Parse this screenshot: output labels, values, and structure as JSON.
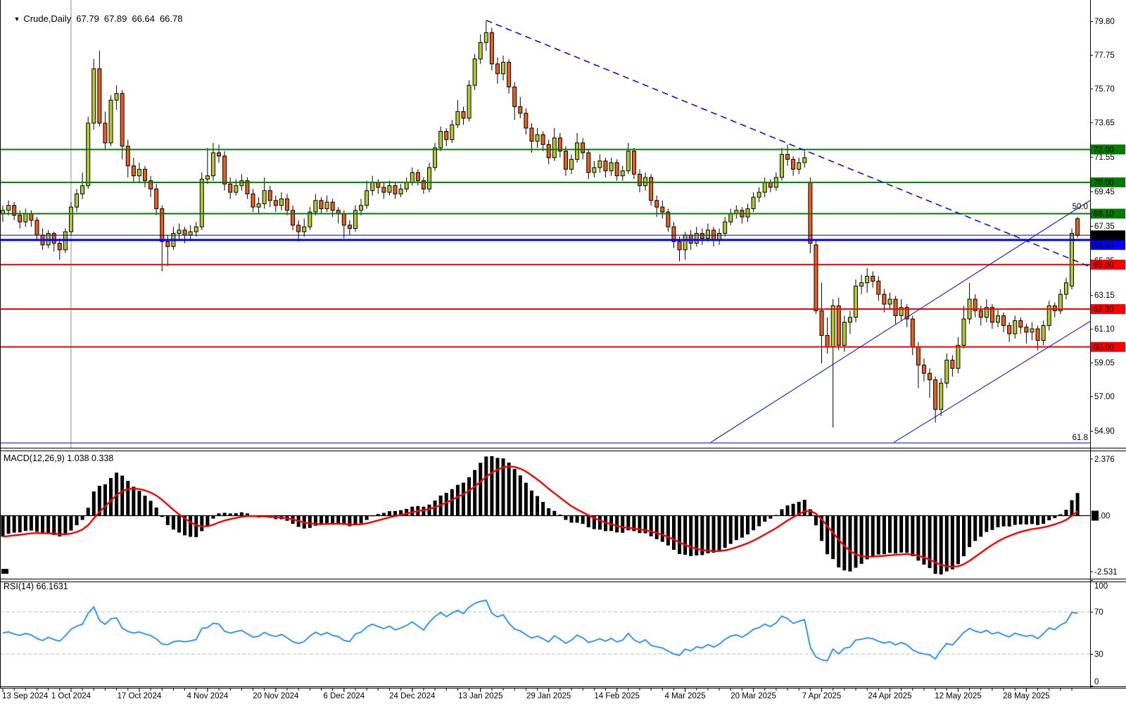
{
  "title_bar": {
    "dropdown_icon": "▼",
    "symbol_period": "Crude,Daily",
    "open": "67.79",
    "high": "67.89",
    "low": "66.64",
    "close": "66.78"
  },
  "chart_data": {
    "type": "candlestick",
    "symbol": "Crude",
    "timeframe": "Daily",
    "grid": "off",
    "ylim": [
      53.9,
      81.1
    ],
    "price_ticks": [
      79.8,
      77.75,
      75.7,
      73.65,
      71.55,
      69.45,
      67.35,
      65.25,
      63.15,
      61.1,
      59.05,
      57.0,
      54.9
    ],
    "x_labels": [
      "13 Sep 2024",
      "1 Oct 2024",
      "17 Oct 2024",
      "4 Nov 2024",
      "20 Nov 2024",
      "6 Dec 2024",
      "24 Dec 2024",
      "13 Jan 2025",
      "29 Jan 2025",
      "14 Feb 2025",
      "4 Mar 2025",
      "20 Mar 2025",
      "7 Apr 2025",
      "24 Apr 2025",
      "12 May 2025",
      "28 May 2025"
    ],
    "candles_per_label": 12,
    "current_price": {
      "value": 66.78,
      "axis_label": "66.78"
    },
    "horizontal_lines": [
      {
        "price": 72.0,
        "color": "#007D00",
        "width": 2,
        "axis_label": "72.00"
      },
      {
        "price": 70.0,
        "color": "#007D00",
        "width": 2,
        "axis_label": "70.00"
      },
      {
        "price": 68.1,
        "color": "#007D00",
        "width": 2,
        "axis_label": "68.10"
      },
      {
        "price": 66.79,
        "color": "#000080",
        "width": 1,
        "axis_label": null
      },
      {
        "price": 66.5,
        "color": "#0000FF",
        "width": 3,
        "axis_label": "66.50",
        "label_shift": 7
      },
      {
        "price": 65.0,
        "color": "#FF0000",
        "width": 2,
        "axis_label": "65.00"
      },
      {
        "price": 62.3,
        "color": "#FF0000",
        "width": 2,
        "axis_label": "62.30"
      },
      {
        "price": 60.0,
        "color": "#FF0000",
        "width": 2,
        "axis_label": "60.00"
      },
      {
        "price": 54.17,
        "color": "#0000C0",
        "width": 1,
        "axis_label": null
      }
    ],
    "trendlines": [
      {
        "from": {
          "bar": 85,
          "price": 79.85
        },
        "to": {
          "bar": 191,
          "price": 64.9
        },
        "style": "dashed",
        "color": "#0000E6",
        "width": 1.5
      },
      {
        "from": {
          "bar": 124.5,
          "price": 54.2
        },
        "to": {
          "bar": 191.2,
          "price": 68.9
        },
        "style": "solid",
        "color": "#0000CC",
        "width": 1
      },
      {
        "from": {
          "bar": 156.7,
          "price": 54.2
        },
        "to": {
          "bar": 191.2,
          "price": 61.55
        },
        "style": "solid",
        "color": "#0000CC",
        "width": 1
      }
    ],
    "fib_labels": [
      {
        "text": "50.0",
        "price": 68.55
      },
      {
        "text": "61.8",
        "price": 54.52
      }
    ],
    "vertical_line": {
      "bar": 12
    },
    "colors": {
      "bull": "#B5C92F",
      "bear": "#E8601C",
      "wick": "#000000",
      "macd_bar": "#000000",
      "macd_signal": "#FF0000",
      "rsi_line": "#3399FF"
    },
    "indicators": [
      {
        "name": "MACD",
        "params": [
          12,
          26,
          9
        ],
        "label": "MACD(12,26,9) 1.038 0.338",
        "current_macd": 1.038,
        "current_signal": 0.338,
        "scale_max_label": "2.376",
        "scale_zero_label": "0.00",
        "scale_min_label": "-2.531",
        "derived": "computed from candle closes"
      },
      {
        "name": "RSI",
        "params": [
          14
        ],
        "label": "RSI(14) 66.1631",
        "current": 66.1631,
        "levels": [
          100,
          70,
          30,
          0
        ],
        "level_lines": [
          70,
          30
        ],
        "derived": "computed from candle closes"
      }
    ],
    "candles": [
      [
        68.1,
        68.6,
        67.6,
        68.3
      ],
      [
        68.3,
        68.9,
        68.0,
        68.6
      ],
      [
        68.6,
        68.8,
        67.7,
        68.0
      ],
      [
        68.0,
        68.3,
        67.2,
        67.6
      ],
      [
        67.6,
        68.4,
        67.3,
        68.1
      ],
      [
        68.1,
        68.3,
        67.3,
        67.7
      ],
      [
        67.7,
        67.9,
        66.5,
        66.8
      ],
      [
        66.8,
        67.2,
        65.9,
        66.2
      ],
      [
        66.2,
        67.1,
        66.0,
        66.9
      ],
      [
        66.9,
        67.0,
        65.8,
        66.3
      ],
      [
        66.3,
        66.6,
        65.3,
        65.9
      ],
      [
        65.9,
        67.2,
        65.7,
        67.0
      ],
      [
        67.0,
        68.8,
        66.8,
        68.5
      ],
      [
        68.5,
        69.6,
        68.2,
        69.3
      ],
      [
        69.3,
        70.6,
        69.0,
        69.8
      ],
      [
        69.8,
        74.0,
        69.6,
        73.6
      ],
      [
        73.6,
        77.5,
        73.2,
        76.9
      ],
      [
        76.9,
        78.0,
        73.4,
        73.6
      ],
      [
        73.6,
        74.3,
        72.0,
        72.4
      ],
      [
        72.4,
        75.3,
        72.2,
        75.0
      ],
      [
        75.0,
        75.9,
        74.4,
        75.4
      ],
      [
        75.4,
        75.6,
        71.4,
        72.2
      ],
      [
        72.2,
        72.6,
        70.3,
        71.0
      ],
      [
        71.0,
        71.5,
        70.0,
        70.4
      ],
      [
        70.4,
        71.2,
        70.0,
        70.8
      ],
      [
        70.8,
        71.0,
        69.7,
        70.1
      ],
      [
        70.1,
        70.4,
        69.1,
        69.6
      ],
      [
        69.6,
        69.9,
        68.0,
        68.4
      ],
      [
        68.4,
        68.6,
        64.6,
        66.4
      ],
      [
        66.4,
        66.8,
        64.9,
        66.1
      ],
      [
        66.1,
        67.3,
        65.9,
        66.9
      ],
      [
        66.9,
        67.5,
        66.5,
        67.1
      ],
      [
        67.1,
        67.3,
        66.3,
        66.8
      ],
      [
        66.8,
        67.4,
        66.5,
        67.0
      ],
      [
        67.0,
        67.6,
        66.7,
        67.3
      ],
      [
        67.3,
        70.6,
        67.1,
        70.2
      ],
      [
        70.2,
        72.1,
        69.9,
        70.4
      ],
      [
        70.4,
        72.4,
        70.1,
        71.8
      ],
      [
        71.8,
        72.3,
        71.2,
        71.6
      ],
      [
        71.6,
        71.9,
        69.5,
        69.9
      ],
      [
        69.9,
        70.3,
        69.0,
        69.4
      ],
      [
        69.4,
        70.2,
        69.2,
        69.8
      ],
      [
        69.8,
        70.5,
        69.5,
        70.1
      ],
      [
        70.1,
        70.3,
        69.0,
        69.3
      ],
      [
        69.3,
        69.6,
        68.2,
        68.5
      ],
      [
        68.5,
        69.1,
        68.1,
        68.7
      ],
      [
        68.7,
        70.3,
        68.4,
        69.5
      ],
      [
        69.5,
        69.8,
        68.5,
        68.9
      ],
      [
        68.9,
        69.2,
        68.2,
        68.6
      ],
      [
        68.6,
        69.4,
        68.3,
        69.0
      ],
      [
        69.0,
        69.3,
        68.0,
        68.3
      ],
      [
        68.3,
        68.6,
        67.1,
        67.4
      ],
      [
        67.4,
        67.7,
        66.4,
        67.0
      ],
      [
        67.0,
        67.8,
        66.7,
        67.3
      ],
      [
        67.3,
        68.5,
        67.1,
        68.2
      ],
      [
        68.2,
        69.3,
        68.0,
        68.9
      ],
      [
        68.9,
        69.1,
        68.1,
        68.4
      ],
      [
        68.4,
        69.2,
        68.2,
        68.8
      ],
      [
        68.8,
        69.0,
        67.9,
        68.3
      ],
      [
        68.3,
        68.5,
        67.5,
        68.1
      ],
      [
        68.1,
        68.3,
        66.6,
        67.4
      ],
      [
        67.4,
        67.7,
        66.8,
        67.2
      ],
      [
        67.2,
        68.6,
        67.0,
        68.3
      ],
      [
        68.3,
        69.0,
        68.0,
        68.6
      ],
      [
        68.6,
        70.1,
        68.4,
        69.5
      ],
      [
        69.5,
        70.4,
        69.2,
        70.0
      ],
      [
        70.0,
        70.2,
        69.3,
        69.7
      ],
      [
        69.7,
        70.0,
        69.0,
        69.4
      ],
      [
        69.4,
        70.1,
        69.2,
        69.8
      ],
      [
        69.8,
        70.0,
        69.0,
        69.3
      ],
      [
        69.3,
        69.9,
        69.1,
        69.6
      ],
      [
        69.6,
        70.3,
        69.4,
        70.0
      ],
      [
        70.0,
        70.9,
        69.8,
        70.6
      ],
      [
        70.6,
        70.8,
        69.8,
        70.1
      ],
      [
        70.1,
        70.3,
        69.3,
        69.6
      ],
      [
        69.6,
        71.2,
        69.4,
        70.9
      ],
      [
        70.9,
        72.4,
        70.7,
        72.1
      ],
      [
        72.1,
        73.4,
        71.9,
        73.1
      ],
      [
        73.1,
        73.3,
        72.2,
        72.6
      ],
      [
        72.6,
        73.8,
        72.4,
        73.5
      ],
      [
        73.5,
        75.0,
        73.3,
        74.3
      ],
      [
        74.3,
        74.6,
        73.5,
        73.9
      ],
      [
        73.9,
        76.2,
        73.7,
        75.9
      ],
      [
        75.9,
        77.8,
        75.6,
        77.5
      ],
      [
        77.5,
        79.0,
        77.2,
        78.5
      ],
      [
        78.5,
        79.8,
        78.0,
        79.1
      ],
      [
        79.1,
        79.4,
        76.8,
        77.2
      ],
      [
        77.2,
        77.6,
        76.0,
        76.6
      ],
      [
        76.6,
        77.7,
        76.2,
        77.3
      ],
      [
        77.3,
        77.5,
        75.4,
        75.8
      ],
      [
        75.8,
        76.1,
        73.8,
        74.6
      ],
      [
        74.6,
        75.2,
        73.9,
        74.2
      ],
      [
        74.2,
        74.5,
        72.9,
        73.3
      ],
      [
        73.3,
        73.6,
        71.8,
        72.5
      ],
      [
        72.5,
        73.3,
        72.1,
        72.9
      ],
      [
        72.9,
        73.1,
        71.9,
        72.3
      ],
      [
        72.3,
        72.6,
        71.1,
        71.5
      ],
      [
        71.5,
        73.3,
        71.3,
        72.7
      ],
      [
        72.7,
        73.0,
        71.5,
        71.9
      ],
      [
        71.9,
        72.2,
        70.4,
        70.8
      ],
      [
        70.8,
        71.7,
        70.5,
        71.4
      ],
      [
        71.4,
        73.0,
        71.2,
        72.4
      ],
      [
        72.4,
        72.7,
        71.4,
        71.8
      ],
      [
        71.8,
        72.0,
        70.2,
        70.6
      ],
      [
        70.6,
        71.3,
        70.3,
        70.9
      ],
      [
        70.9,
        71.7,
        70.6,
        71.3
      ],
      [
        71.3,
        71.5,
        70.3,
        70.7
      ],
      [
        70.7,
        71.5,
        70.4,
        71.2
      ],
      [
        71.2,
        71.4,
        70.1,
        70.4
      ],
      [
        70.4,
        71.0,
        70.1,
        70.7
      ],
      [
        70.7,
        72.4,
        70.5,
        71.9
      ],
      [
        71.9,
        72.1,
        70.2,
        70.5
      ],
      [
        70.5,
        70.8,
        69.4,
        69.8
      ],
      [
        69.8,
        70.6,
        69.5,
        70.3
      ],
      [
        70.3,
        70.5,
        68.6,
        68.9
      ],
      [
        68.9,
        69.2,
        67.9,
        68.5
      ],
      [
        68.5,
        68.9,
        67.8,
        68.2
      ],
      [
        68.2,
        68.4,
        67.0,
        67.3
      ],
      [
        67.3,
        67.6,
        66.0,
        66.4
      ],
      [
        66.4,
        66.7,
        65.2,
        65.9
      ],
      [
        65.9,
        67.0,
        65.3,
        66.8
      ],
      [
        66.8,
        67.1,
        65.9,
        66.3
      ],
      [
        66.3,
        67.3,
        66.1,
        66.9
      ],
      [
        66.9,
        67.2,
        66.2,
        66.6
      ],
      [
        66.6,
        67.5,
        66.4,
        67.1
      ],
      [
        67.1,
        67.3,
        66.1,
        66.5
      ],
      [
        66.5,
        67.2,
        66.2,
        66.9
      ],
      [
        66.9,
        67.9,
        66.7,
        67.6
      ],
      [
        67.6,
        68.4,
        67.4,
        68.1
      ],
      [
        68.1,
        68.6,
        67.8,
        68.3
      ],
      [
        68.3,
        68.5,
        67.5,
        67.9
      ],
      [
        67.9,
        68.7,
        67.6,
        68.4
      ],
      [
        68.4,
        69.4,
        68.2,
        69.1
      ],
      [
        69.1,
        69.7,
        68.8,
        69.4
      ],
      [
        69.4,
        70.3,
        69.1,
        70.0
      ],
      [
        70.0,
        70.2,
        69.4,
        69.7
      ],
      [
        69.7,
        70.6,
        69.5,
        70.3
      ],
      [
        70.3,
        72.1,
        70.1,
        71.7
      ],
      [
        71.7,
        72.3,
        71.0,
        71.4
      ],
      [
        71.4,
        71.6,
        70.4,
        70.8
      ],
      [
        70.8,
        71.5,
        70.5,
        71.2
      ],
      [
        71.2,
        71.9,
        70.9,
        71.5
      ],
      [
        70.0,
        70.3,
        65.7,
        66.3
      ],
      [
        66.2,
        66.5,
        62.0,
        62.2
      ],
      [
        62.2,
        63.9,
        59.0,
        60.7
      ],
      [
        60.7,
        61.8,
        59.6,
        60.0
      ],
      [
        60.0,
        62.9,
        55.1,
        62.5
      ],
      [
        62.5,
        63.0,
        59.8,
        60.1
      ],
      [
        60.1,
        61.9,
        59.7,
        61.5
      ],
      [
        61.5,
        62.2,
        60.8,
        61.8
      ],
      [
        61.8,
        64.1,
        61.5,
        63.7
      ],
      [
        63.7,
        64.4,
        63.2,
        63.9
      ],
      [
        63.9,
        64.8,
        63.3,
        64.3
      ],
      [
        64.3,
        64.6,
        63.6,
        64.0
      ],
      [
        64.0,
        64.3,
        62.8,
        63.2
      ],
      [
        63.2,
        63.5,
        62.1,
        62.6
      ],
      [
        62.6,
        63.3,
        62.3,
        62.9
      ],
      [
        62.9,
        63.1,
        61.4,
        61.9
      ],
      [
        61.9,
        62.9,
        61.6,
        62.4
      ],
      [
        62.4,
        62.6,
        61.2,
        61.7
      ],
      [
        61.7,
        61.9,
        59.5,
        60.0
      ],
      [
        60.0,
        60.3,
        57.5,
        58.9
      ],
      [
        58.9,
        59.3,
        57.9,
        58.4
      ],
      [
        58.4,
        58.7,
        56.9,
        58.0
      ],
      [
        58.0,
        58.2,
        55.4,
        56.2
      ],
      [
        56.2,
        58.1,
        55.8,
        57.8
      ],
      [
        57.8,
        59.6,
        57.5,
        59.2
      ],
      [
        59.2,
        59.5,
        58.2,
        58.7
      ],
      [
        58.7,
        60.6,
        58.4,
        60.1
      ],
      [
        60.1,
        62.5,
        59.9,
        61.7
      ],
      [
        61.7,
        63.9,
        61.4,
        62.9
      ],
      [
        62.9,
        63.2,
        61.8,
        62.2
      ],
      [
        62.2,
        62.5,
        61.3,
        61.8
      ],
      [
        61.8,
        62.9,
        61.5,
        62.4
      ],
      [
        62.4,
        62.6,
        61.1,
        61.5
      ],
      [
        61.5,
        62.3,
        61.2,
        61.9
      ],
      [
        61.9,
        62.1,
        60.9,
        61.3
      ],
      [
        61.3,
        61.5,
        60.3,
        60.8
      ],
      [
        60.8,
        61.9,
        60.5,
        61.6
      ],
      [
        61.6,
        61.8,
        60.8,
        61.2
      ],
      [
        61.2,
        61.4,
        60.2,
        60.9
      ],
      [
        60.9,
        61.5,
        60.4,
        61.1
      ],
      [
        61.1,
        61.3,
        59.8,
        60.4
      ],
      [
        60.4,
        61.6,
        60.1,
        61.3
      ],
      [
        61.3,
        62.8,
        61.0,
        62.5
      ],
      [
        62.5,
        62.7,
        61.8,
        62.2
      ],
      [
        62.2,
        63.5,
        62.0,
        63.2
      ],
      [
        63.2,
        64.2,
        62.9,
        63.9
      ],
      [
        63.7,
        67.2,
        63.5,
        66.9
      ],
      [
        67.79,
        67.89,
        66.64,
        66.78
      ]
    ]
  }
}
